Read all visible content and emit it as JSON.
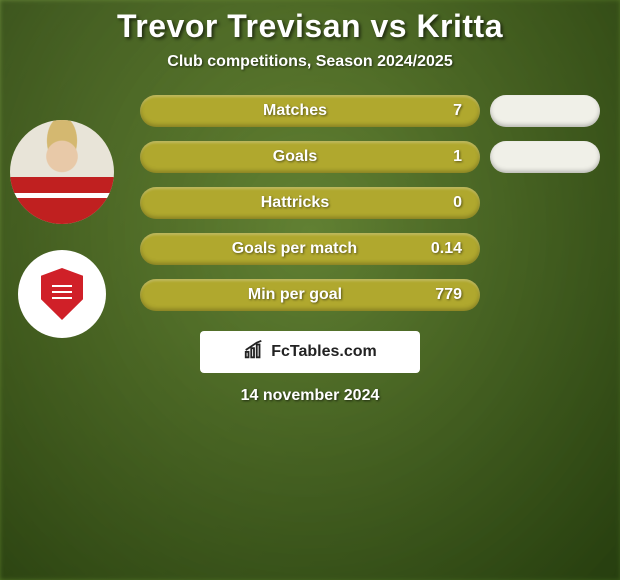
{
  "title": "Trevor Trevisan vs Kritta",
  "subtitle": "Club competitions, Season 2024/2025",
  "colors": {
    "bar_primary": "#b0a82e",
    "side_pill": "#f0f0e8",
    "title_color": "#ffffff",
    "subtitle_color": "#ffffff"
  },
  "fontsize": {
    "title": 32,
    "subtitle": 16,
    "bar_label": 16,
    "date": 16
  },
  "stats": [
    {
      "label": "Matches",
      "value": "7",
      "has_side": true
    },
    {
      "label": "Goals",
      "value": "1",
      "has_side": true
    },
    {
      "label": "Hattricks",
      "value": "0",
      "has_side": false
    },
    {
      "label": "Goals per match",
      "value": "0.14",
      "has_side": false
    },
    {
      "label": "Min per goal",
      "value": "779",
      "has_side": false
    }
  ],
  "footer": {
    "brand": "FcTables.com"
  },
  "date": "14 november 2024",
  "avatars": {
    "player_name": "player-avatar",
    "club_name": "club-avatar"
  }
}
